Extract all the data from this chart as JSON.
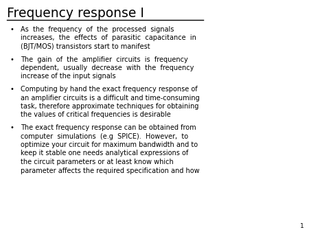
{
  "title": "Frequency response I",
  "background_color": "#ffffff",
  "title_color": "#000000",
  "text_color": "#000000",
  "page_number": "1",
  "title_fontsize": 13.5,
  "body_fontsize": 7.0,
  "page_num_fontsize": 6.5,
  "bullet_char": "•",
  "bullet_lines": [
    [
      "As  the  frequency  of  the  processed  signals",
      "increases,  the  effects  of  parasitic  capacitance  in",
      "(BJT/MOS) transistors start to manifest"
    ],
    [
      "The  gain  of  the  amplifier  circuits  is  frequency",
      "dependent,  usually  decrease  with  the  frequency",
      "increase of the input signals"
    ],
    [
      "Computing by hand the exact frequency response of",
      "an amplifier circuits is a difficult and time-consuming",
      "task, therefore approximate techniques for obtaining",
      "the values of critical frequencies is desirable"
    ],
    [
      "The exact frequency response can be obtained from",
      "computer  simulations  (e.g  SPICE).  However,  to",
      "optimize your circuit for maximum bandwidth and to",
      "keep it stable one needs analytical expressions of",
      "the circuit parameters or at least know which",
      "parameter affects the required specification and how"
    ]
  ]
}
